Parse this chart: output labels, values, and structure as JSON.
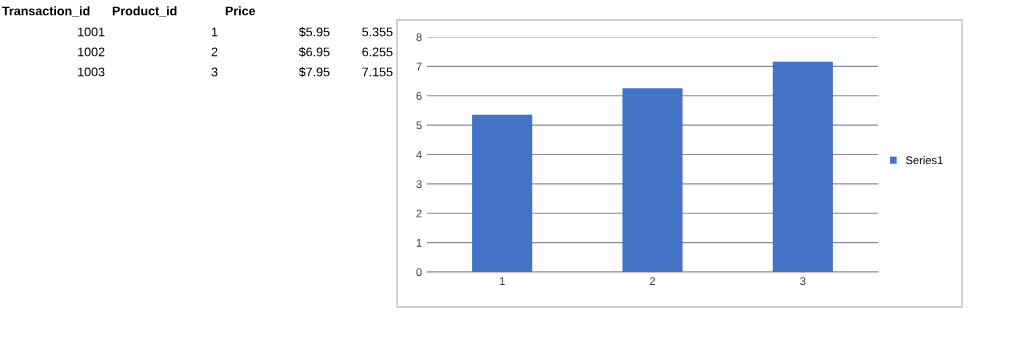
{
  "chart_data": {
    "type": "bar",
    "categories": [
      "1",
      "2",
      "3"
    ],
    "series": [
      {
        "name": "Series1",
        "color": "#4472c4",
        "values": [
          5.355,
          6.255,
          7.155
        ]
      }
    ],
    "ylim": [
      0,
      8
    ],
    "yticks": [
      0,
      1,
      2,
      3,
      4,
      5,
      6,
      7,
      8
    ],
    "grid": "y",
    "legend": "right",
    "annotations": [
      "Transaction_id",
      "Product_id",
      "Price",
      "1001",
      "1",
      "$5.95",
      "5.355",
      "1002",
      "2",
      "$6.95",
      "6.255",
      "1003",
      "3",
      "$7.95",
      "7.155"
    ]
  }
}
